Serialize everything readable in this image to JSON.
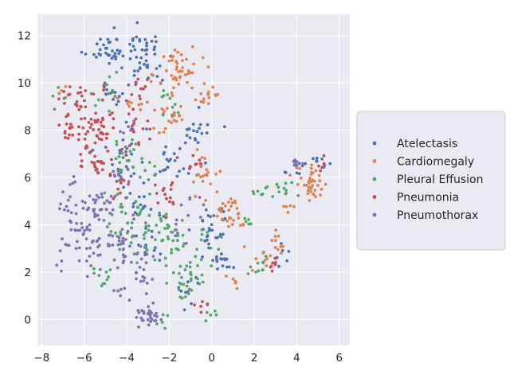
{
  "chart_data": {
    "type": "scatter",
    "title": "",
    "xlabel": "",
    "ylabel": "",
    "xlim": [
      -8.2,
      6.5
    ],
    "ylim": [
      -1.1,
      12.9
    ],
    "x_ticks": [
      -8,
      -6,
      -4,
      -2,
      0,
      2,
      4,
      6
    ],
    "y_ticks": [
      0,
      2,
      4,
      6,
      8,
      10,
      12
    ],
    "x_tick_labels": [
      "−8",
      "−6",
      "−4",
      "−2",
      "0",
      "2",
      "4",
      "6"
    ],
    "y_tick_labels": [
      "0",
      "2",
      "4",
      "6",
      "8",
      "10",
      "12"
    ],
    "grid": true,
    "legend_position": "right",
    "background": "#EAEAF2",
    "series": [
      {
        "name": "Atelectasis",
        "color": "#4C72B0",
        "clusters": [
          {
            "center": [
              -5.0,
              11.4
            ],
            "spread": [
              0.7,
              0.4
            ],
            "n": 30
          },
          {
            "center": [
              -3.5,
              11.6
            ],
            "spread": [
              0.6,
              0.5
            ],
            "n": 30
          },
          {
            "center": [
              -3.0,
              10.5
            ],
            "spread": [
              0.7,
              0.5
            ],
            "n": 20
          },
          {
            "center": [
              -4.5,
              9.5
            ],
            "spread": [
              0.6,
              0.5
            ],
            "n": 15
          },
          {
            "center": [
              -4.3,
              7.0
            ],
            "spread": [
              0.8,
              0.9
            ],
            "n": 25
          },
          {
            "center": [
              -2.0,
              6.7
            ],
            "spread": [
              0.7,
              0.6
            ],
            "n": 20
          },
          {
            "center": [
              -0.6,
              7.8
            ],
            "spread": [
              0.5,
              0.6
            ],
            "n": 20
          },
          {
            "center": [
              0.0,
              4.0
            ],
            "spread": [
              0.5,
              0.7
            ],
            "n": 30
          },
          {
            "center": [
              0.5,
              2.5
            ],
            "spread": [
              0.4,
              0.4
            ],
            "n": 15
          },
          {
            "center": [
              -1.0,
              1.2
            ],
            "spread": [
              0.5,
              0.5
            ],
            "n": 10
          },
          {
            "center": [
              3.3,
              2.6
            ],
            "spread": [
              0.3,
              0.3
            ],
            "n": 6
          },
          {
            "center": [
              5.0,
              6.6
            ],
            "spread": [
              0.7,
              0.2
            ],
            "n": 12
          },
          {
            "center": [
              4.0,
              6.2
            ],
            "spread": [
              0.3,
              0.3
            ],
            "n": 6
          },
          {
            "center": [
              -3.0,
              3.0
            ],
            "spread": [
              0.5,
              0.6
            ],
            "n": 15
          },
          {
            "center": [
              -3.2,
              5.0
            ],
            "spread": [
              0.6,
              0.5
            ],
            "n": 15
          }
        ]
      },
      {
        "name": "Cardiomegaly",
        "color": "#DD8452",
        "clusters": [
          {
            "center": [
              -1.5,
              10.5
            ],
            "spread": [
              0.7,
              0.7
            ],
            "n": 45
          },
          {
            "center": [
              -0.2,
              9.5
            ],
            "spread": [
              0.4,
              0.5
            ],
            "n": 15
          },
          {
            "center": [
              -2.0,
              8.5
            ],
            "spread": [
              0.6,
              0.5
            ],
            "n": 20
          },
          {
            "center": [
              -0.5,
              6.0
            ],
            "spread": [
              0.5,
              0.6
            ],
            "n": 20
          },
          {
            "center": [
              0.8,
              5.0
            ],
            "spread": [
              0.5,
              0.6
            ],
            "n": 20
          },
          {
            "center": [
              1.2,
              4.2
            ],
            "spread": [
              0.4,
              0.3
            ],
            "n": 10
          },
          {
            "center": [
              3.2,
              3.2
            ],
            "spread": [
              0.3,
              0.4
            ],
            "n": 10
          },
          {
            "center": [
              2.5,
              2.6
            ],
            "spread": [
              0.5,
              0.4
            ],
            "n": 10
          },
          {
            "center": [
              4.7,
              5.7
            ],
            "spread": [
              0.5,
              0.5
            ],
            "n": 40
          },
          {
            "center": [
              3.5,
              4.8
            ],
            "spread": [
              0.3,
              0.2
            ],
            "n": 5
          },
          {
            "center": [
              1.0,
              1.5
            ],
            "spread": [
              0.3,
              0.2
            ],
            "n": 6
          },
          {
            "center": [
              -6.9,
              9.8
            ],
            "spread": [
              0.3,
              0.3
            ],
            "n": 5
          },
          {
            "center": [
              -3.5,
              9.2
            ],
            "spread": [
              0.6,
              0.4
            ],
            "n": 10
          }
        ]
      },
      {
        "name": "Pleural Effusion",
        "color": "#55A868",
        "clusters": [
          {
            "center": [
              -3.8,
              4.0
            ],
            "spread": [
              0.9,
              1.0
            ],
            "n": 50
          },
          {
            "center": [
              -2.0,
              3.5
            ],
            "spread": [
              0.8,
              0.8
            ],
            "n": 35
          },
          {
            "center": [
              -1.1,
              1.8
            ],
            "spread": [
              0.5,
              0.6
            ],
            "n": 30
          },
          {
            "center": [
              -3.8,
              6.8
            ],
            "spread": [
              0.7,
              0.6
            ],
            "n": 25
          },
          {
            "center": [
              -2.1,
              9.2
            ],
            "spread": [
              0.4,
              0.4
            ],
            "n": 10
          },
          {
            "center": [
              -5.0,
              9.5
            ],
            "spread": [
              0.5,
              0.5
            ],
            "n": 10
          },
          {
            "center": [
              -5.0,
              1.6
            ],
            "spread": [
              0.5,
              0.4
            ],
            "n": 10
          },
          {
            "center": [
              3.2,
              5.5
            ],
            "spread": [
              0.5,
              0.3
            ],
            "n": 12
          },
          {
            "center": [
              2.3,
              5.5
            ],
            "spread": [
              0.3,
              0.3
            ],
            "n": 6
          },
          {
            "center": [
              2.2,
              2.2
            ],
            "spread": [
              0.4,
              0.4
            ],
            "n": 10
          },
          {
            "center": [
              1.8,
              4.2
            ],
            "spread": [
              0.2,
              0.2
            ],
            "n": 5
          },
          {
            "center": [
              -0.1,
              0.3
            ],
            "spread": [
              0.3,
              0.3
            ],
            "n": 6
          },
          {
            "center": [
              -2.3,
              -0.1
            ],
            "spread": [
              0.3,
              0.3
            ],
            "n": 5
          },
          {
            "center": [
              -7.2,
              9.3
            ],
            "spread": [
              0.2,
              0.3
            ],
            "n": 4
          },
          {
            "center": [
              -0.2,
              3.2
            ],
            "spread": [
              0.4,
              0.5
            ],
            "n": 10
          }
        ]
      },
      {
        "name": "Pneumonia",
        "color": "#C44E52",
        "clusters": [
          {
            "center": [
              -5.6,
              8.5
            ],
            "spread": [
              0.8,
              0.9
            ],
            "n": 60
          },
          {
            "center": [
              -5.4,
              6.8
            ],
            "spread": [
              0.7,
              0.5
            ],
            "n": 30
          },
          {
            "center": [
              -6.8,
              7.8
            ],
            "spread": [
              0.4,
              0.4
            ],
            "n": 10
          },
          {
            "center": [
              -6.5,
              9.5
            ],
            "spread": [
              0.4,
              0.4
            ],
            "n": 10
          },
          {
            "center": [
              -3.6,
              8.0
            ],
            "spread": [
              0.6,
              0.5
            ],
            "n": 15
          },
          {
            "center": [
              -3.2,
              9.8
            ],
            "spread": [
              0.5,
              0.4
            ],
            "n": 10
          },
          {
            "center": [
              -2.1,
              5.2
            ],
            "spread": [
              0.5,
              0.5
            ],
            "n": 15
          },
          {
            "center": [
              -1.0,
              6.5
            ],
            "spread": [
              0.4,
              0.4
            ],
            "n": 10
          },
          {
            "center": [
              5.2,
              6.5
            ],
            "spread": [
              0.3,
              0.2
            ],
            "n": 5
          },
          {
            "center": [
              3.0,
              2.3
            ],
            "spread": [
              0.3,
              0.3
            ],
            "n": 6
          },
          {
            "center": [
              -0.5,
              0.7
            ],
            "spread": [
              0.3,
              0.3
            ],
            "n": 5
          },
          {
            "center": [
              -4.3,
              5.7
            ],
            "spread": [
              0.4,
              0.4
            ],
            "n": 10
          }
        ]
      },
      {
        "name": "Pneumothorax",
        "color": "#8172B2",
        "clusters": [
          {
            "center": [
              -5.8,
              3.5
            ],
            "spread": [
              0.9,
              1.2
            ],
            "n": 70
          },
          {
            "center": [
              -6.7,
              5.0
            ],
            "spread": [
              0.3,
              0.6
            ],
            "n": 15
          },
          {
            "center": [
              -4.0,
              3.0
            ],
            "spread": [
              0.6,
              0.8
            ],
            "n": 35
          },
          {
            "center": [
              -5.2,
              4.8
            ],
            "spread": [
              0.6,
              0.5
            ],
            "n": 20
          },
          {
            "center": [
              -3.0,
              0.1
            ],
            "spread": [
              0.4,
              0.3
            ],
            "n": 25
          },
          {
            "center": [
              -2.5,
              0.5
            ],
            "spread": [
              0.3,
              0.3
            ],
            "n": 6
          },
          {
            "center": [
              -3.2,
              1.7
            ],
            "spread": [
              0.3,
              0.3
            ],
            "n": 8
          },
          {
            "center": [
              -4.1,
              1.2
            ],
            "spread": [
              0.3,
              0.2
            ],
            "n": 6
          },
          {
            "center": [
              -1.5,
              4.0
            ],
            "spread": [
              0.4,
              0.5
            ],
            "n": 8
          },
          {
            "center": [
              -4.5,
              6.2
            ],
            "spread": [
              0.4,
              0.4
            ],
            "n": 10
          },
          {
            "center": [
              -3.8,
              8.0
            ],
            "spread": [
              0.3,
              0.3
            ],
            "n": 5
          },
          {
            "center": [
              4.0,
              6.5
            ],
            "spread": [
              0.2,
              0.3
            ],
            "n": 5
          },
          {
            "center": [
              -0.5,
              5.0
            ],
            "spread": [
              0.4,
              0.4
            ],
            "n": 5
          }
        ]
      }
    ]
  }
}
